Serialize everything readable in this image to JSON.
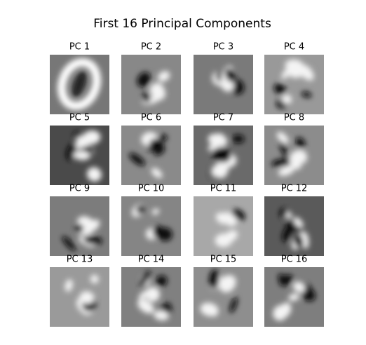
{
  "title": "First 16 Principal Components",
  "panels": [
    {
      "label": "PC 1"
    },
    {
      "label": "PC 2"
    },
    {
      "label": "PC 3"
    },
    {
      "label": "PC 4"
    },
    {
      "label": "PC 5"
    },
    {
      "label": "PC 6"
    },
    {
      "label": "PC 7"
    },
    {
      "label": "PC 8"
    },
    {
      "label": "PC 9"
    },
    {
      "label": "PC 10"
    },
    {
      "label": "PC 11"
    },
    {
      "label": "PC 12"
    },
    {
      "label": "PC 13"
    },
    {
      "label": "PC 14"
    },
    {
      "label": "PC 15"
    },
    {
      "label": "PC 16"
    }
  ]
}
